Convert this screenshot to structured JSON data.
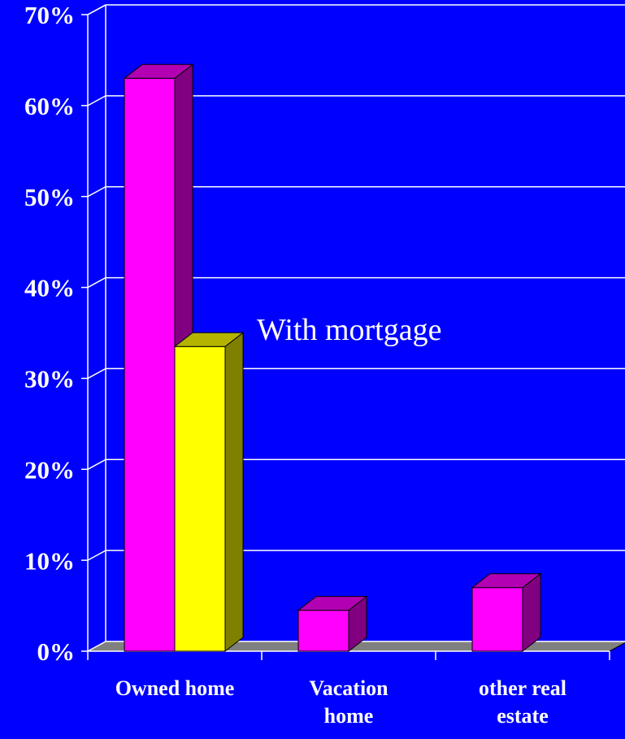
{
  "chart_data": {
    "type": "bar3d",
    "categories": [
      "Owned home",
      "Vacation home",
      "other real estate"
    ],
    "series": [
      {
        "color": "#ff00ff",
        "values": [
          63,
          4.5,
          7
        ]
      },
      {
        "color": "#ffff00",
        "values": [
          33.5,
          null,
          null
        ]
      }
    ],
    "ylim": [
      0,
      70
    ],
    "yticks": [
      {
        "value": 0,
        "label": "0%"
      },
      {
        "value": 10,
        "label": "10%"
      },
      {
        "value": 20,
        "label": "20%"
      },
      {
        "value": 30,
        "label": "30%"
      },
      {
        "value": 40,
        "label": "40%"
      },
      {
        "value": 50,
        "label": "50%"
      },
      {
        "value": 60,
        "label": "60%"
      },
      {
        "value": 70,
        "label": "70%"
      }
    ],
    "grid": true,
    "annotation": "With mortgage"
  }
}
